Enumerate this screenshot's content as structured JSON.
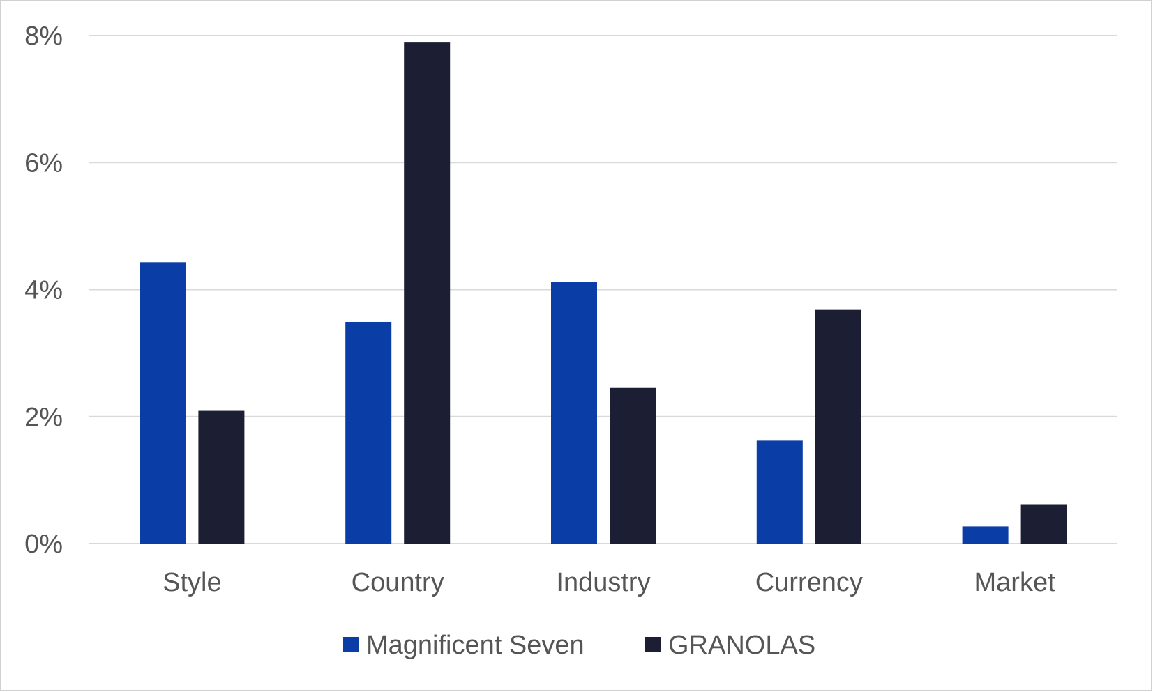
{
  "chart_data": {
    "type": "bar",
    "categories": [
      "Style",
      "Country",
      "Industry",
      "Currency",
      "Market"
    ],
    "series": [
      {
        "name": "Magnificent Seven",
        "color": "#0a3ea6",
        "values": [
          4.43,
          3.49,
          4.12,
          1.62,
          0.27
        ]
      },
      {
        "name": "GRANOLAS",
        "color": "#1c1f33",
        "values": [
          2.09,
          7.9,
          2.45,
          3.68,
          0.62
        ]
      }
    ],
    "ylim": [
      0,
      8
    ],
    "yticks": [
      0,
      2,
      4,
      6,
      8
    ],
    "ytick_labels": [
      "0%",
      "2%",
      "4%",
      "6%",
      "8%"
    ],
    "grid": true,
    "legend_position": "bottom"
  }
}
